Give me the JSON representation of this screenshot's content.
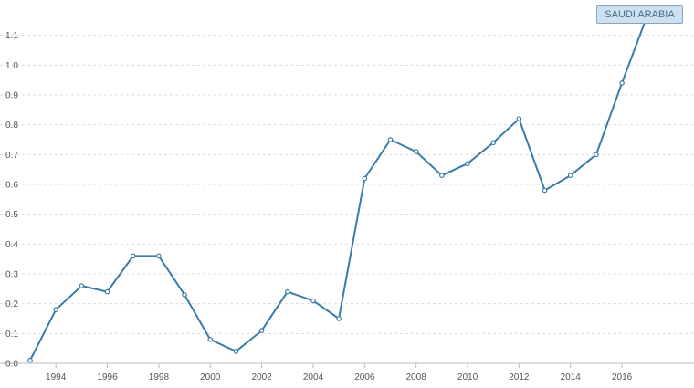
{
  "chart_data": {
    "type": "line",
    "title": "",
    "xlabel": "",
    "ylabel": "",
    "x": [
      1993,
      1994,
      1995,
      1996,
      1997,
      1998,
      1999,
      2000,
      2001,
      2002,
      2003,
      2004,
      2005,
      2006,
      2007,
      2008,
      2009,
      2010,
      2011,
      2012,
      2013,
      2014,
      2015,
      2016,
      2017
    ],
    "x_tick_labels": [
      "1994",
      "1996",
      "1998",
      "2000",
      "2002",
      "2004",
      "2006",
      "2008",
      "2010",
      "2012",
      "2014",
      "2016"
    ],
    "y_tick_labels": [
      "0.0",
      "0.1",
      "0.2",
      "0.3",
      "0.4",
      "0.5",
      "0.6",
      "0.7",
      "0.8",
      "0.9",
      "1.0",
      "1.1"
    ],
    "xlim": [
      1993,
      2018.8
    ],
    "ylim": [
      0,
      1.2
    ],
    "grid": "horizontal dashed",
    "legend_placement": "top-right",
    "series": [
      {
        "name": "SAUDI ARABIA",
        "color": "#3a7ca8",
        "values": [
          0.01,
          0.18,
          0.26,
          0.24,
          0.36,
          0.36,
          0.23,
          0.08,
          0.04,
          0.11,
          0.24,
          0.21,
          0.15,
          0.62,
          0.75,
          0.71,
          0.63,
          0.67,
          0.74,
          0.82,
          0.58,
          0.63,
          0.7,
          0.94,
          1.17
        ]
      }
    ]
  }
}
